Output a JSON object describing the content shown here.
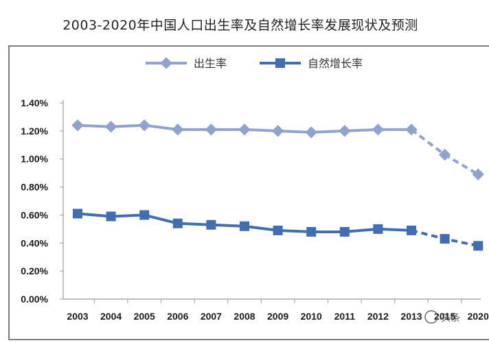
{
  "title": "2003-2020年中国人口出生率及自然增长率发展现状及预测",
  "watermark": "头条",
  "chart_data": {
    "type": "line",
    "categories": [
      "2003",
      "2004",
      "2005",
      "2006",
      "2007",
      "2008",
      "2009",
      "2010",
      "2011",
      "2012",
      "2013",
      "2015",
      "2020"
    ],
    "ylim": [
      0,
      1.4
    ],
    "yticks": [
      "0.00%",
      "0.20%",
      "0.40%",
      "0.60%",
      "0.80%",
      "1.00%",
      "1.20%",
      "1.40%"
    ],
    "grid": false,
    "legend_position": "top",
    "series": [
      {
        "name": "出生率",
        "color": "#8fa3d1",
        "marker": "diamond",
        "values": [
          1.24,
          1.23,
          1.24,
          1.21,
          1.21,
          1.21,
          1.2,
          1.19,
          1.2,
          1.21,
          1.21,
          1.03,
          0.89
        ],
        "dashed_from_index": 10
      },
      {
        "name": "自然增长率",
        "color": "#3f6eb5",
        "marker": "square",
        "values": [
          0.61,
          0.59,
          0.6,
          0.54,
          0.53,
          0.52,
          0.49,
          0.48,
          0.48,
          0.5,
          0.49,
          0.43,
          0.38
        ],
        "dashed_from_index": 10
      }
    ]
  }
}
